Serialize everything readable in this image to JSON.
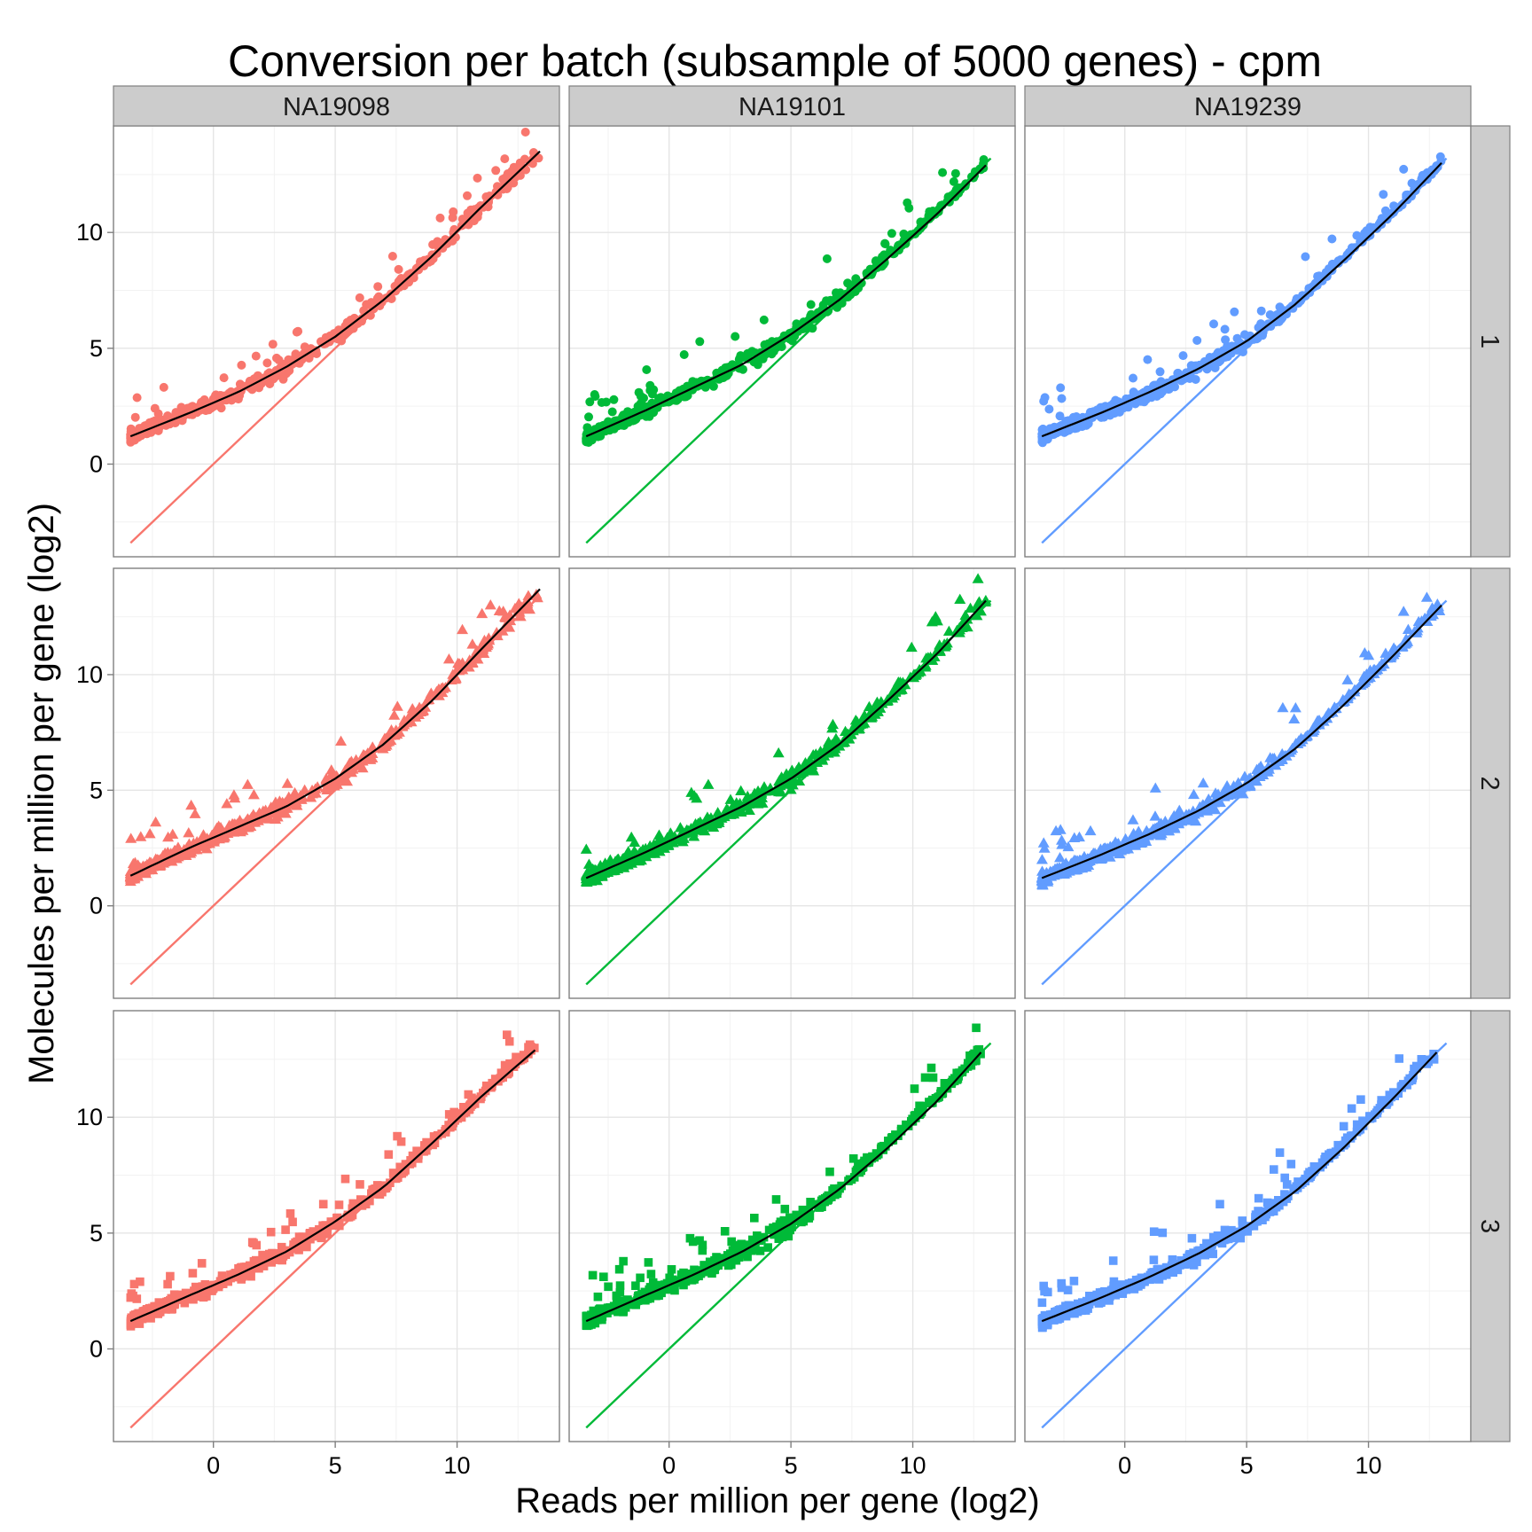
{
  "chart_data": {
    "type": "scatter",
    "title": "Conversion per batch (subsample of 5000 genes) - cpm",
    "xlabel": "Reads per million per gene (log2)",
    "ylabel": "Molecules per million per gene (log2)",
    "xlim": [
      -4.1,
      14.2
    ],
    "ylim": [
      -4.0,
      14.6
    ],
    "x_ticks": [
      0,
      5,
      10
    ],
    "y_ticks": [
      0,
      5,
      10
    ],
    "grid": true,
    "columns": [
      {
        "name": "NA19098",
        "color": "#F8766D"
      },
      {
        "name": "NA19101",
        "color": "#00BA38"
      },
      {
        "name": "NA19239",
        "color": "#619CFF"
      }
    ],
    "rows": [
      {
        "name": "1",
        "marker": "circle"
      },
      {
        "name": "2",
        "marker": "triangle"
      },
      {
        "name": "3",
        "marker": "square"
      }
    ],
    "identity_line": {
      "x": [
        -3.4,
        13.2
      ],
      "y": [
        -3.4,
        13.2
      ]
    },
    "panels": [
      {
        "row": "1",
        "col": "NA19098",
        "x_range": [
          -3.4,
          13.4
        ],
        "fit": {
          "x": [
            -3.4,
            -1,
            1,
            3,
            5,
            7,
            9,
            11,
            13.4
          ],
          "y": [
            1.2,
            2.2,
            3.1,
            4.2,
            5.5,
            7.1,
            9.0,
            11.1,
            13.5
          ]
        }
      },
      {
        "row": "1",
        "col": "NA19101",
        "x_range": [
          -3.4,
          13.0
        ],
        "fit": {
          "x": [
            -3.4,
            -1,
            1,
            3,
            5,
            7,
            9,
            11,
            13.0
          ],
          "y": [
            1.2,
            2.3,
            3.3,
            4.3,
            5.6,
            7.1,
            8.9,
            10.8,
            12.9
          ]
        }
      },
      {
        "row": "1",
        "col": "NA19239",
        "x_range": [
          -3.4,
          13.0
        ],
        "fit": {
          "x": [
            -3.4,
            -1,
            1,
            3,
            5,
            7,
            9,
            11,
            13.0
          ],
          "y": [
            1.2,
            2.2,
            3.1,
            4.1,
            5.3,
            6.9,
            8.8,
            10.8,
            13.0
          ]
        }
      },
      {
        "row": "2",
        "col": "NA19098",
        "x_range": [
          -3.4,
          13.4
        ],
        "fit": {
          "x": [
            -3.4,
            -1,
            1,
            3,
            5,
            7,
            9,
            11,
            13.4
          ],
          "y": [
            1.3,
            2.5,
            3.4,
            4.3,
            5.5,
            7.0,
            8.9,
            11.1,
            13.7
          ]
        }
      },
      {
        "row": "2",
        "col": "NA19101",
        "x_range": [
          -3.4,
          13.0
        ],
        "fit": {
          "x": [
            -3.4,
            -1,
            1,
            3,
            5,
            7,
            9,
            11,
            13.0
          ],
          "y": [
            1.2,
            2.3,
            3.3,
            4.3,
            5.5,
            7.0,
            8.9,
            10.9,
            13.2
          ]
        }
      },
      {
        "row": "2",
        "col": "NA19239",
        "x_range": [
          -3.4,
          13.0
        ],
        "fit": {
          "x": [
            -3.4,
            -1,
            1,
            3,
            5,
            7,
            9,
            11,
            13.0
          ],
          "y": [
            1.2,
            2.2,
            3.1,
            4.1,
            5.3,
            6.8,
            8.7,
            10.8,
            13.0
          ]
        }
      },
      {
        "row": "3",
        "col": "NA19098",
        "x_range": [
          -3.4,
          13.2
        ],
        "fit": {
          "x": [
            -3.4,
            -1,
            1,
            3,
            5,
            7,
            9,
            11,
            13.2
          ],
          "y": [
            1.2,
            2.3,
            3.2,
            4.2,
            5.5,
            7.0,
            8.9,
            10.9,
            12.9
          ]
        }
      },
      {
        "row": "3",
        "col": "NA19101",
        "x_range": [
          -3.4,
          12.8
        ],
        "fit": {
          "x": [
            -3.4,
            -1,
            1,
            3,
            5,
            7,
            9,
            11,
            12.8
          ],
          "y": [
            1.2,
            2.3,
            3.2,
            4.2,
            5.4,
            6.9,
            8.7,
            10.7,
            12.8
          ]
        }
      },
      {
        "row": "3",
        "col": "NA19239",
        "x_range": [
          -3.4,
          12.8
        ],
        "fit": {
          "x": [
            -3.4,
            -1,
            1,
            3,
            5,
            7,
            9,
            11,
            12.8
          ],
          "y": [
            1.2,
            2.2,
            3.1,
            4.1,
            5.3,
            6.8,
            8.7,
            10.8,
            12.8
          ]
        }
      }
    ]
  }
}
